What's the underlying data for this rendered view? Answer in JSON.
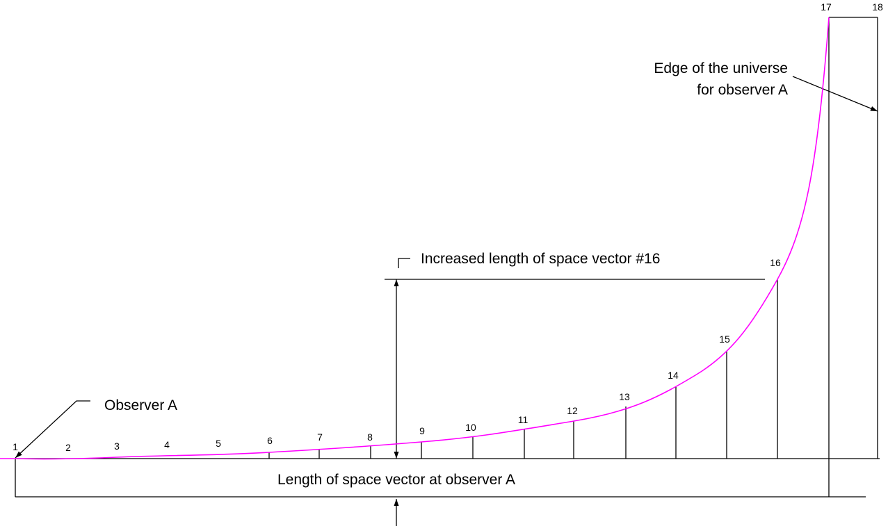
{
  "points": [
    "1",
    "2",
    "3",
    "4",
    "5",
    "6",
    "7",
    "8",
    "9",
    "10",
    "11",
    "12",
    "13",
    "14",
    "15",
    "16",
    "17",
    "18"
  ],
  "annotations": {
    "observer": "Observer A",
    "increased": "Increased length of space vector #16",
    "edge": [
      "Edge of the universe",
      "for observer A"
    ],
    "length": "Length of space vector at observer A"
  }
}
